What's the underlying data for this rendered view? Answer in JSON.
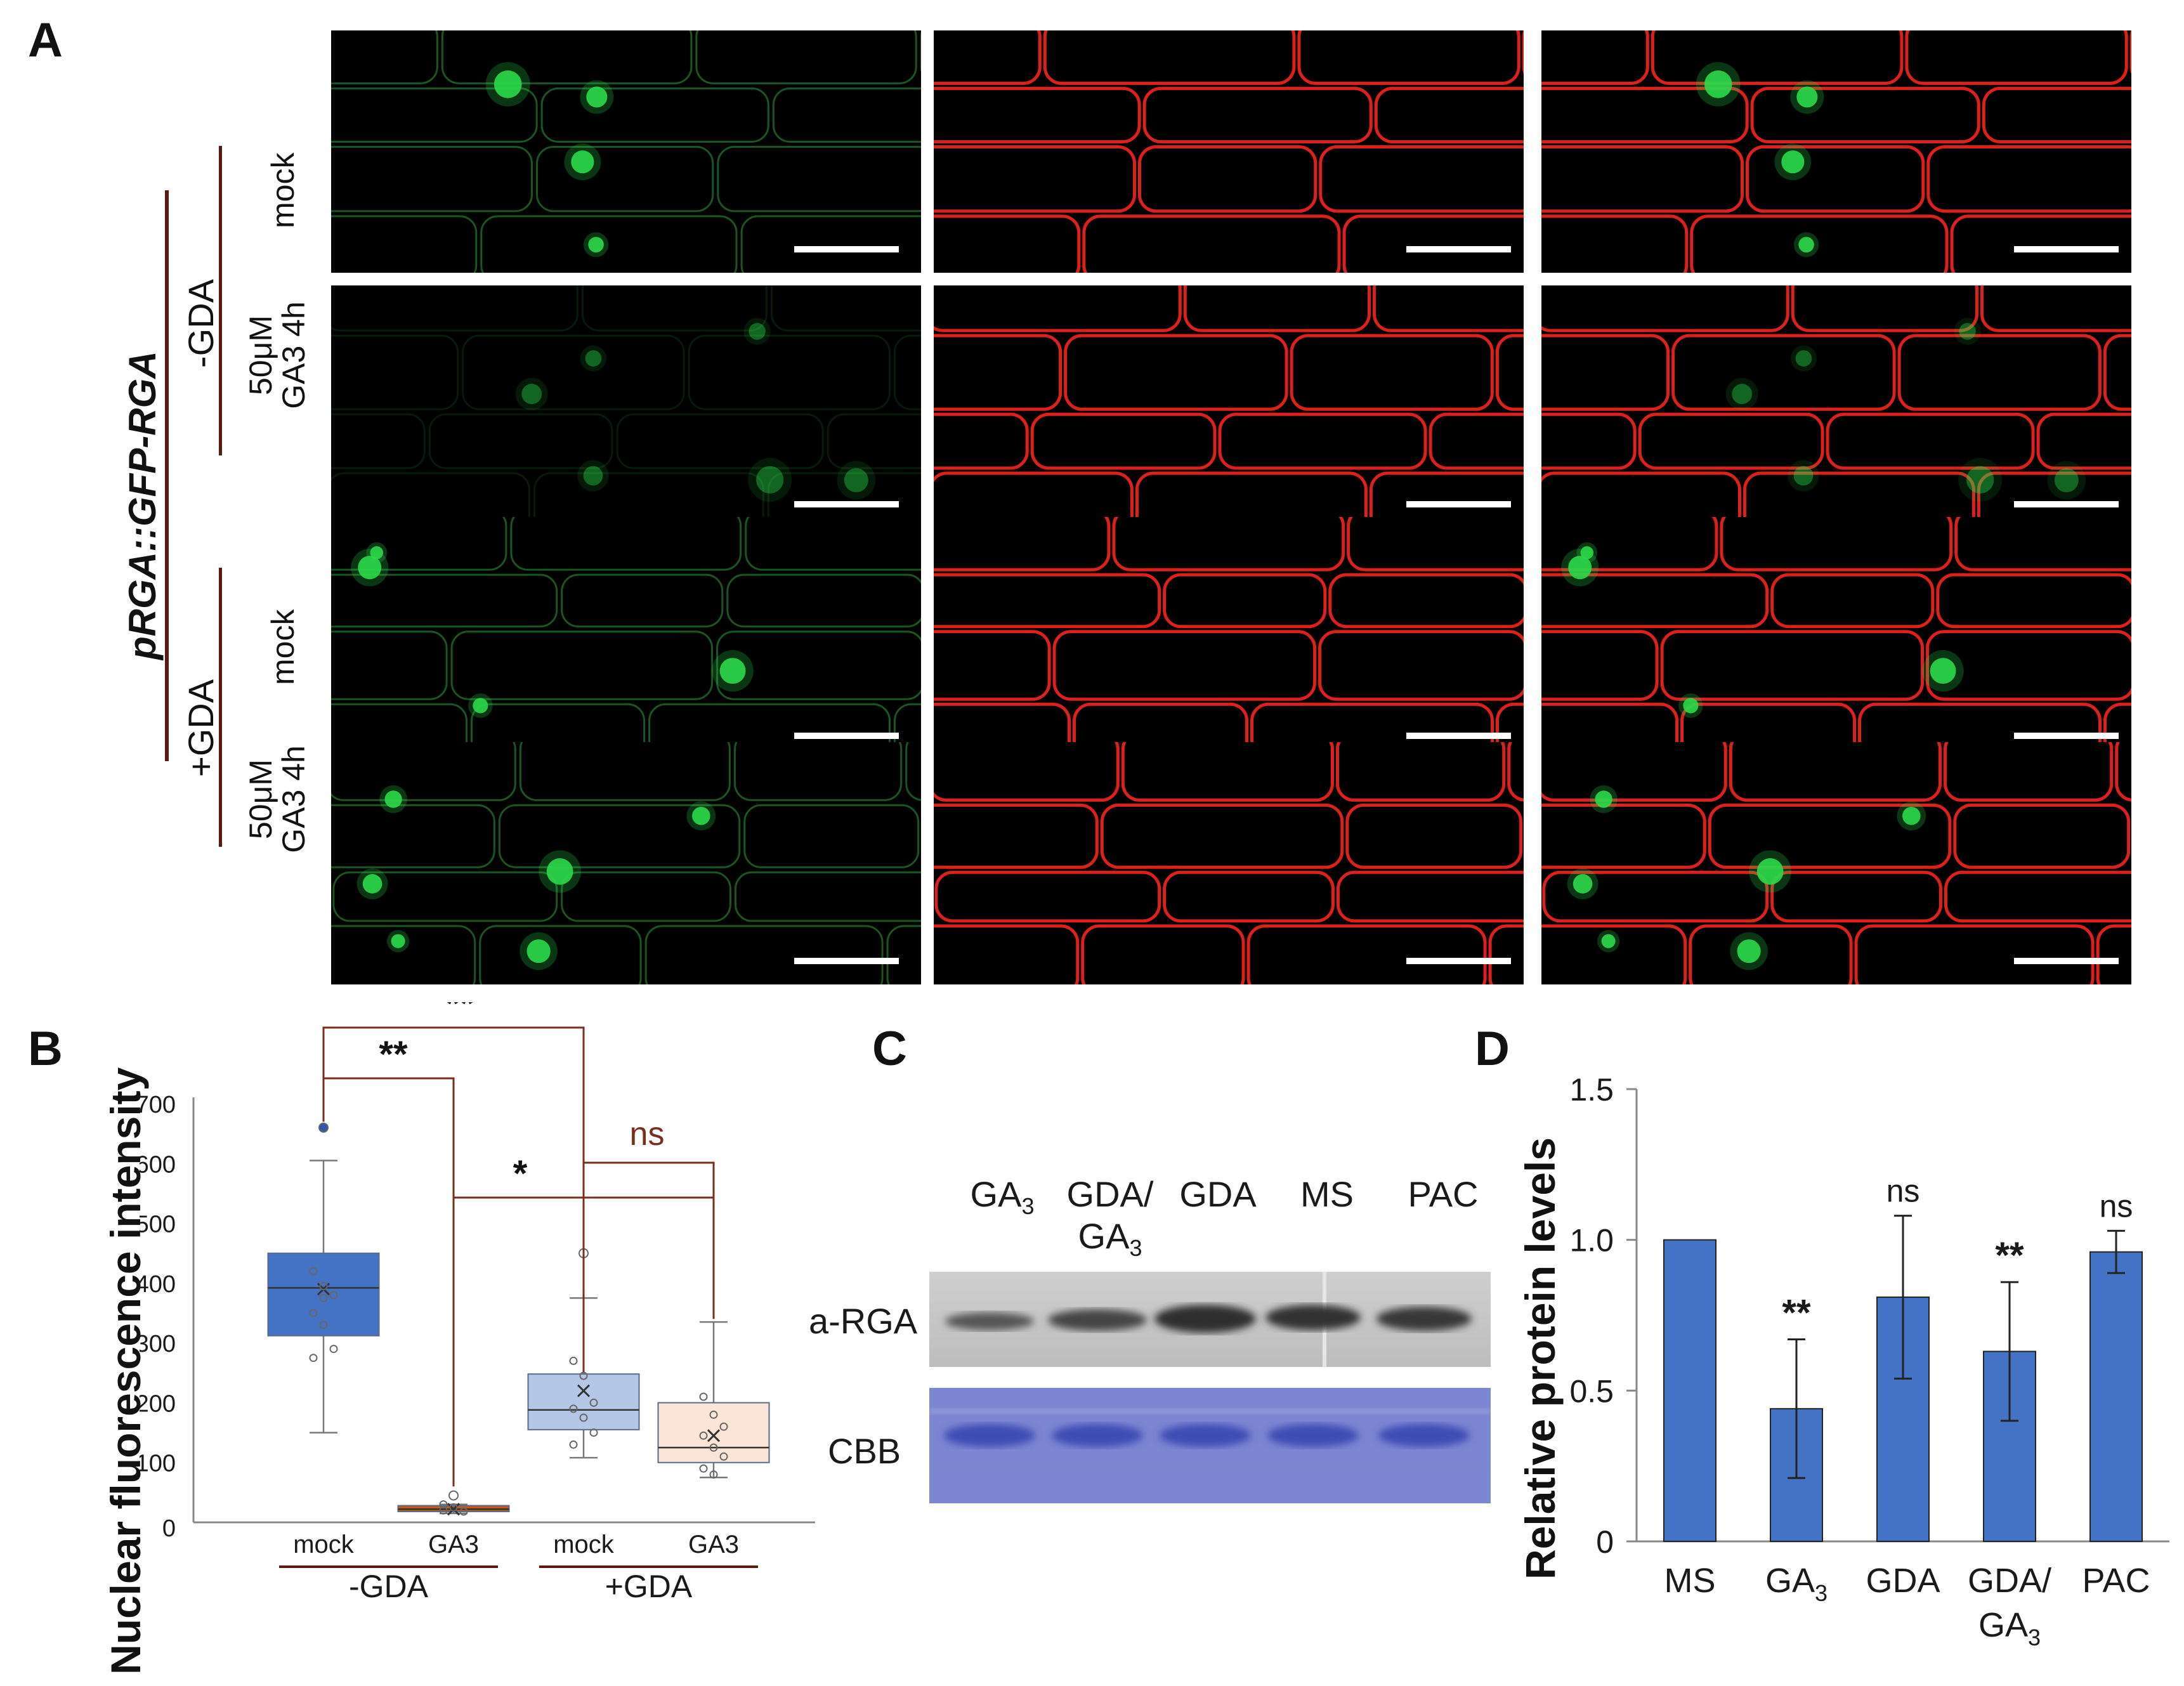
{
  "panelA": {
    "letter": "A",
    "construct": "pRGA::GFP-RGA",
    "groups": [
      "-GDA",
      "+GDA"
    ],
    "rows": [
      {
        "label_line1": "mock",
        "label_line2": ""
      },
      {
        "label_line1": "50μM",
        "label_line2": "GA3 4h"
      },
      {
        "label_line1": "mock",
        "label_line2": ""
      },
      {
        "label_line1": "50μM",
        "label_line2": "GA3 4h"
      }
    ],
    "channel_colors": {
      "gfp": "#2bd94a",
      "membrane": "#e8221c",
      "background": "#000000"
    }
  },
  "panelB": {
    "letter": "B",
    "chart_data": {
      "type": "box",
      "ylabel": "Nuclear fluorescence intensity",
      "ylim": [
        0,
        700
      ],
      "yticks": [
        "700",
        "600",
        "500",
        "400",
        "300",
        "200",
        "100",
        "0"
      ],
      "categories": [
        "mock",
        "GA3",
        "mock",
        "GA3"
      ],
      "groups": [
        "-GDA",
        "+GDA"
      ],
      "boxes": [
        {
          "name": "-GDA mock",
          "min": 150,
          "q1": 312,
          "median": 392,
          "q3": 450,
          "max": 605,
          "mean": 390,
          "color": "#4472c4",
          "outliers": [
            660
          ],
          "points": [
            420,
            395,
            380,
            350,
            330,
            290,
            275,
            375
          ]
        },
        {
          "name": "-GDA GA3",
          "min": 15,
          "q1": 18,
          "median": 22,
          "q3": 28,
          "max": 30,
          "mean": 22,
          "color": "#c55a11",
          "outliers": [
            45
          ],
          "points": [
            20,
            25,
            18,
            30
          ]
        },
        {
          "name": "+GDA mock",
          "min": 108,
          "q1": 155,
          "median": 188,
          "q3": 248,
          "max": 375,
          "mean": 220,
          "color": "#b4c7e7",
          "outliers": [
            450
          ],
          "points": [
            270,
            245,
            200,
            190,
            175,
            150,
            130
          ]
        },
        {
          "name": "+GDA GA3",
          "min": 75,
          "q1": 100,
          "median": 125,
          "q3": 200,
          "max": 335,
          "mean": 145,
          "color": "#fbe5d6",
          "outliers": [],
          "points": [
            210,
            180,
            160,
            145,
            125,
            110,
            90,
            80
          ]
        }
      ],
      "significance": [
        "**",
        "**",
        "*",
        "ns"
      ]
    }
  },
  "panelC": {
    "letter": "C",
    "lanes": [
      {
        "line1": "GA",
        "sub": "3",
        "line2": "",
        "sub2": ""
      },
      {
        "line1": "GDA/",
        "sub": "",
        "line2": "GA",
        "sub2": "3"
      },
      {
        "line1": "GDA",
        "sub": "",
        "line2": "",
        "sub2": ""
      },
      {
        "line1": "MS",
        "sub": "",
        "line2": "",
        "sub2": ""
      },
      {
        "line1": "PAC",
        "sub": "",
        "line2": "",
        "sub2": ""
      }
    ],
    "blot_label": "a-RGA",
    "stain_label": "CBB"
  },
  "panelD": {
    "letter": "D",
    "chart_data": {
      "type": "bar",
      "ylabel": "Relative protein levels",
      "ylim": [
        0,
        1.5
      ],
      "yticks": [
        "1.5",
        "1.0",
        "0.5",
        "0"
      ],
      "categories": [
        "MS",
        "GA3",
        "GDA",
        "GDA/GA3",
        "PAC"
      ],
      "values": [
        1.0,
        0.44,
        0.81,
        0.63,
        0.96
      ],
      "errors": [
        0,
        0.23,
        0.27,
        0.23,
        0.07
      ],
      "significance": [
        "",
        "**",
        "ns",
        "**",
        "ns"
      ],
      "color": "#4472c4"
    },
    "xlabels": [
      {
        "line1": "MS",
        "sub": "",
        "line2": "",
        "sub2": ""
      },
      {
        "line1": "GA",
        "sub": "3",
        "line2": "",
        "sub2": ""
      },
      {
        "line1": "GDA",
        "sub": "",
        "line2": "",
        "sub2": ""
      },
      {
        "line1": "GDA/",
        "sub": "",
        "line2": "GA",
        "sub2": "3"
      },
      {
        "line1": "PAC",
        "sub": "",
        "line2": "",
        "sub2": ""
      }
    ]
  }
}
